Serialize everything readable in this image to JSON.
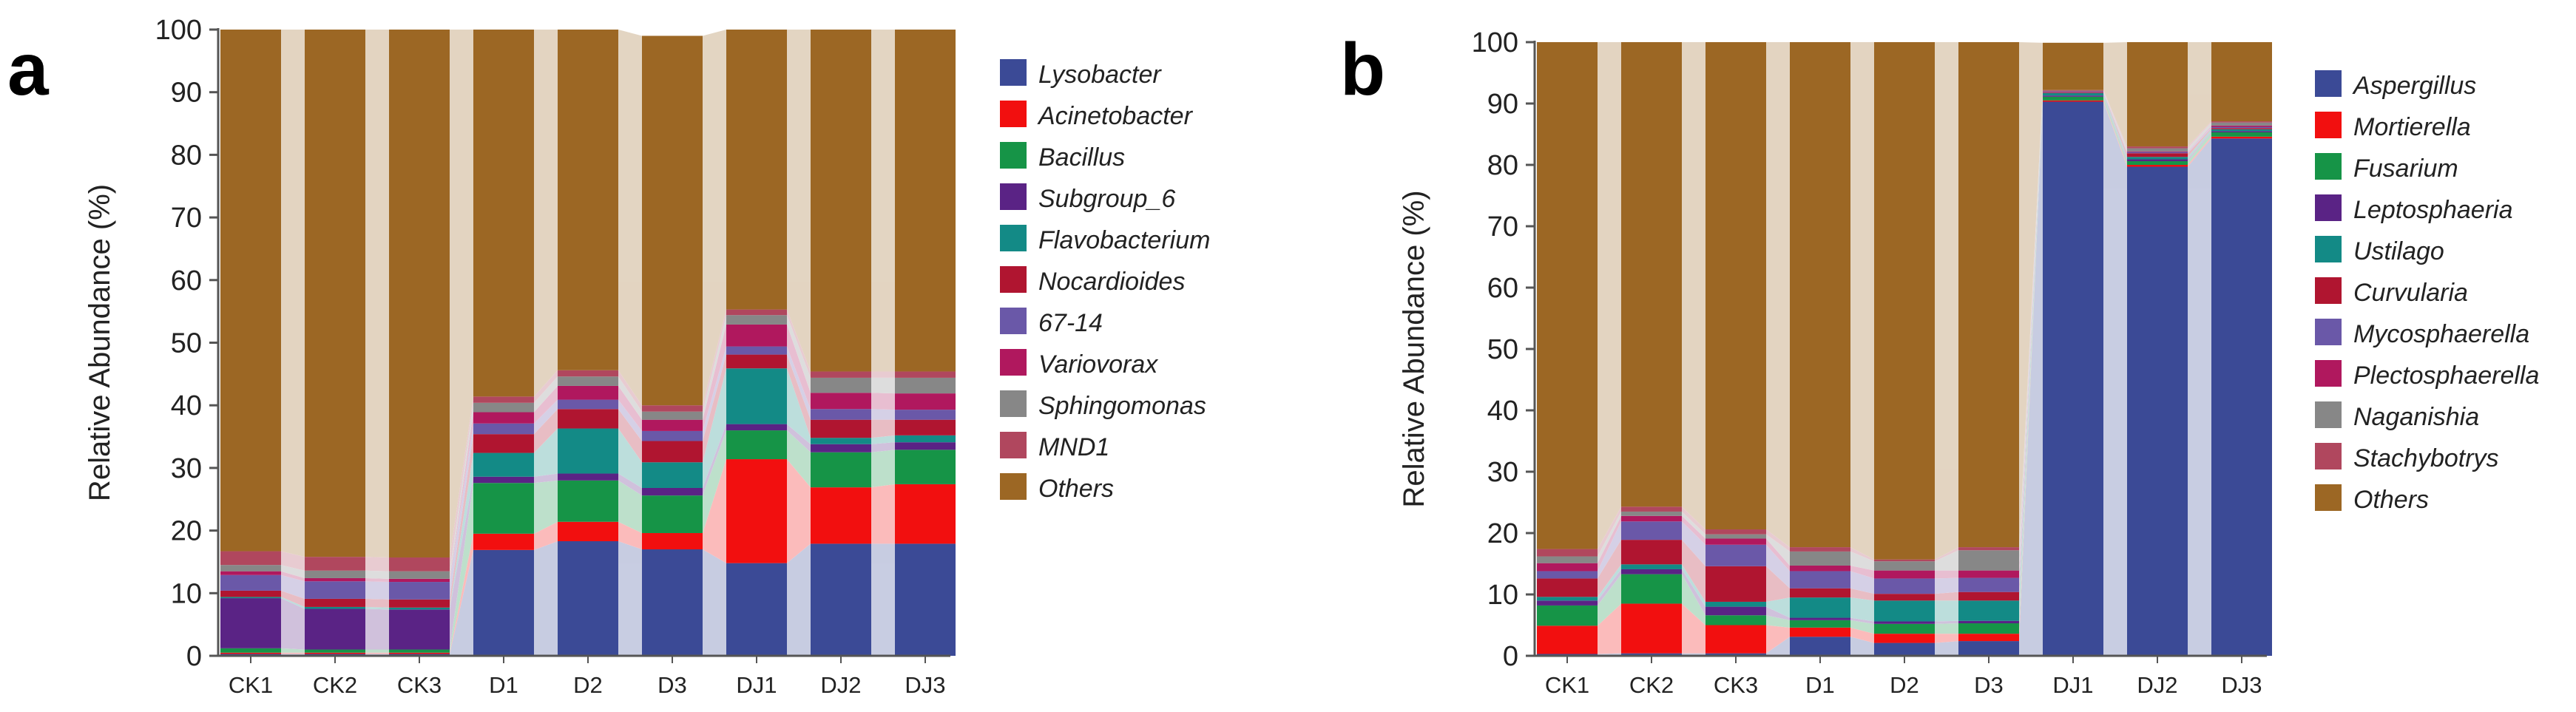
{
  "chart_data": [
    {
      "panel": "a",
      "type": "bar",
      "stacked": true,
      "ylabel": "Relative Abundance (%)",
      "ylim": [
        0,
        100
      ],
      "yticks": [
        0,
        10,
        20,
        30,
        40,
        50,
        60,
        70,
        80,
        90,
        100
      ],
      "categories": [
        "CK1",
        "CK2",
        "CK3",
        "D1",
        "D2",
        "D3",
        "DJ1",
        "DJ2",
        "DJ3"
      ],
      "series": [
        {
          "name": "Lysobacter",
          "color": "#3b4a96",
          "values": [
            0.3,
            0.3,
            0.3,
            16.9,
            18.3,
            17.0,
            14.8,
            17.9,
            17.9
          ]
        },
        {
          "name": "Acinetobacter",
          "color": "#f20f0f",
          "values": [
            0.2,
            0.2,
            0.2,
            2.6,
            3.1,
            2.6,
            16.6,
            9.0,
            9.5
          ]
        },
        {
          "name": "Bacillus",
          "color": "#169447",
          "values": [
            0.7,
            0.5,
            0.5,
            8.1,
            6.6,
            6.0,
            4.6,
            5.6,
            5.5
          ]
        },
        {
          "name": "Subgroup_6",
          "color": "#5a2385",
          "values": [
            8.0,
            6.5,
            6.4,
            1.0,
            1.1,
            1.2,
            1.0,
            1.3,
            1.2
          ]
        },
        {
          "name": "Flavobacterium",
          "color": "#138a86",
          "values": [
            0.2,
            0.3,
            0.3,
            3.8,
            7.2,
            4.1,
            8.9,
            1.0,
            1.1
          ]
        },
        {
          "name": "Nocardioides",
          "color": "#b01530",
          "values": [
            1.0,
            1.3,
            1.3,
            3.0,
            3.1,
            3.4,
            2.2,
            2.9,
            2.5
          ]
        },
        {
          "name": "67-14",
          "color": "#6a58a8",
          "values": [
            2.5,
            2.8,
            2.8,
            1.7,
            1.5,
            1.6,
            1.3,
            1.7,
            1.6
          ]
        },
        {
          "name": "Variovorax",
          "color": "#b0185e",
          "values": [
            0.6,
            0.5,
            0.5,
            1.8,
            2.2,
            1.8,
            3.5,
            2.6,
            2.6
          ]
        },
        {
          "name": "Sphingomonas",
          "color": "#878787",
          "values": [
            1.0,
            1.2,
            1.2,
            1.5,
            1.5,
            1.3,
            1.5,
            2.4,
            2.5
          ]
        },
        {
          "name": "MND1",
          "color": "#b0475e",
          "values": [
            2.2,
            2.2,
            2.2,
            1.0,
            1.0,
            1.0,
            0.9,
            1.0,
            1.0
          ]
        },
        {
          "name": "Others",
          "color": "#9c6724",
          "values": [
            83.3,
            84.2,
            84.3,
            58.6,
            54.4,
            59.0,
            44.7,
            54.6,
            54.6
          ]
        }
      ]
    },
    {
      "panel": "b",
      "type": "bar",
      "stacked": true,
      "ylabel": "Relative Abundance (%)",
      "ylim": [
        0,
        100
      ],
      "yticks": [
        0,
        10,
        20,
        30,
        40,
        50,
        60,
        70,
        80,
        90,
        100
      ],
      "categories": [
        "CK1",
        "CK2",
        "CK3",
        "D1",
        "D2",
        "D3",
        "DJ1",
        "DJ2",
        "DJ3"
      ],
      "series": [
        {
          "name": "Aspergillus",
          "color": "#3b4a96",
          "values": [
            0.3,
            0.4,
            0.4,
            3.1,
            2.1,
            2.4,
            90.3,
            79.7,
            84.3
          ]
        },
        {
          "name": "Mortierella",
          "color": "#f20f0f",
          "values": [
            4.6,
            8.1,
            4.6,
            1.5,
            1.5,
            1.2,
            0.2,
            0.3,
            0.3
          ]
        },
        {
          "name": "Fusarium",
          "color": "#169447",
          "values": [
            3.3,
            4.8,
            1.6,
            1.2,
            1.6,
            1.7,
            0.6,
            0.6,
            0.7
          ]
        },
        {
          "name": "Leptosphaeria",
          "color": "#5a2385",
          "values": [
            0.8,
            0.8,
            1.4,
            0.4,
            0.4,
            0.4,
            0.2,
            0.3,
            0.2
          ]
        },
        {
          "name": "Ustilago",
          "color": "#138a86",
          "values": [
            0.6,
            0.8,
            0.8,
            3.3,
            3.4,
            3.3,
            0.4,
            0.4,
            0.3
          ]
        },
        {
          "name": "Curvularia",
          "color": "#b01530",
          "values": [
            3.0,
            4.0,
            5.8,
            1.5,
            1.1,
            1.4,
            0.1,
            0.6,
            0.2
          ]
        },
        {
          "name": "Mycosphaerella",
          "color": "#6a58a8",
          "values": [
            1.2,
            3.0,
            3.5,
            2.8,
            2.5,
            2.3,
            0.1,
            0.2,
            0.2
          ]
        },
        {
          "name": "Plectosphaerella",
          "color": "#b0185e",
          "values": [
            1.3,
            0.9,
            1.0,
            0.9,
            1.3,
            1.2,
            0.1,
            0.1,
            0.2
          ]
        },
        {
          "name": "Naganishia",
          "color": "#878787",
          "values": [
            1.1,
            0.7,
            0.7,
            2.3,
            1.5,
            3.3,
            0.1,
            0.5,
            0.5
          ]
        },
        {
          "name": "Stachybotrys",
          "color": "#b0475e",
          "values": [
            1.2,
            0.8,
            0.8,
            0.7,
            0.3,
            0.5,
            0.1,
            0.3,
            0.2
          ]
        },
        {
          "name": "Others",
          "color": "#9c6724",
          "values": [
            82.6,
            75.7,
            79.4,
            82.3,
            84.3,
            82.3,
            7.7,
            17.0,
            12.9
          ]
        }
      ]
    }
  ],
  "panels": [
    {
      "letter": "a"
    },
    {
      "letter": "b"
    }
  ]
}
